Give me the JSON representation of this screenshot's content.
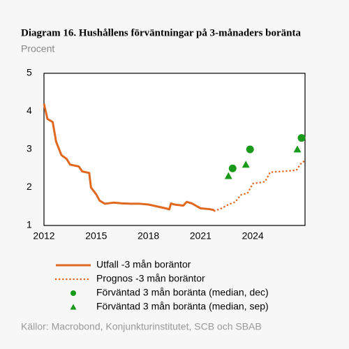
{
  "chart_data": {
    "type": "line",
    "title": "Diagram 16. Hushållens förväntningar på 3-månaders boränta",
    "subtitle": "Procent",
    "source": "Källor: Macrobond, Konjunkturinstitutet, SCB och SBAB",
    "xlim": [
      2012,
      2027
    ],
    "xticks": [
      2012,
      2015,
      2018,
      2021,
      2024
    ],
    "ylim": [
      1,
      5
    ],
    "yticks": [
      1,
      2,
      3,
      4,
      5
    ],
    "grid": false,
    "series": [
      {
        "name": "Utfall -3 mån boräntor",
        "color": "#e0681f",
        "style": "solid",
        "x": [
          2012.0,
          2012.2,
          2012.5,
          2012.7,
          2013.0,
          2013.3,
          2013.5,
          2014.0,
          2014.2,
          2014.6,
          2014.7,
          2015.0,
          2015.2,
          2015.5,
          2016.0,
          2016.5,
          2017.0,
          2017.5,
          2018.0,
          2018.5,
          2019.0,
          2019.2,
          2019.3,
          2019.5,
          2020.0,
          2020.2,
          2020.5,
          2020.8,
          2021.0,
          2021.5,
          2021.8
        ],
        "values": [
          4.2,
          3.8,
          3.72,
          3.2,
          2.85,
          2.75,
          2.6,
          2.55,
          2.42,
          2.38,
          2.0,
          1.82,
          1.65,
          1.57,
          1.6,
          1.58,
          1.57,
          1.57,
          1.55,
          1.5,
          1.45,
          1.42,
          1.58,
          1.55,
          1.52,
          1.62,
          1.58,
          1.5,
          1.45,
          1.43,
          1.4
        ]
      },
      {
        "name": "Prognos -3 mån boräntor",
        "color": "#e0681f",
        "style": "dotted",
        "x": [
          2021.8,
          2022.2,
          2022.6,
          2023.0,
          2023.3,
          2023.7,
          2024.0,
          2024.7,
          2025.0,
          2026.5,
          2026.8,
          2027.0
        ],
        "values": [
          1.38,
          1.45,
          1.55,
          1.62,
          1.8,
          1.85,
          2.1,
          2.15,
          2.4,
          2.45,
          2.65,
          2.7
        ]
      },
      {
        "name": "Förväntad 3 mån boränta (median, dec)",
        "color": "#1a9a1a",
        "style": "circle",
        "x": [
          2022.84,
          2023.84,
          2026.8
        ],
        "values": [
          2.5,
          3.0,
          3.3
        ]
      },
      {
        "name": "Förväntad 3 mån boränta (median, sep)",
        "color": "#1a9a1a",
        "style": "triangle",
        "x": [
          2022.6,
          2023.6,
          2026.56
        ],
        "values": [
          2.3,
          2.6,
          3.0
        ]
      }
    ]
  }
}
